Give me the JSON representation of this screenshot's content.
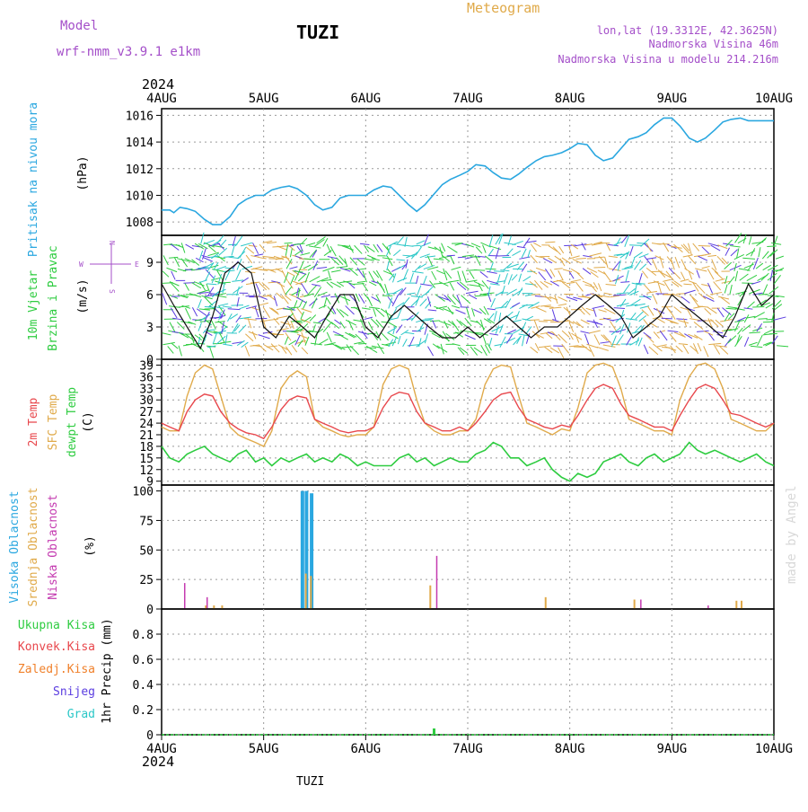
{
  "header": {
    "model_label": "Model",
    "model_name": "wrf-nmm_v3.9.1  e1km",
    "station_title": "TUZI",
    "product_title": "Meteogram",
    "lonlat": "lon,lat (19.3312E, 42.3625N)",
    "elevation": "Nadmorska Visina 46m",
    "model_elevation": "Nadmorska Visina u modelu 214.216m",
    "footer_station": "TUZI",
    "credit": "made by Angel"
  },
  "colors": {
    "pressure": "#2aa7e0",
    "t2m": "#e8474c",
    "tsfc": "#e0aa4a",
    "dewpoint": "#2ecc40",
    "high_cloud": "#2aa7e0",
    "mid_cloud": "#e0aa4a",
    "low_cloud": "#c43ab0",
    "total_precip": "#2ecc40",
    "conv_precip": "#e8474c",
    "frozen_precip": "#f0802a",
    "snow": "#5a3ce0",
    "hail": "#2ac7c7",
    "wind_speed": "#111111",
    "grid": "#9a9a9a"
  },
  "time_axis": {
    "year": "2024",
    "labels": [
      "4AUG",
      "5AUG",
      "6AUG",
      "7AUG",
      "8AUG",
      "9AUG",
      "10AUG"
    ]
  },
  "chart_data": [
    {
      "id": "pressure",
      "type": "line",
      "ylabel": "Pritisak na nivou mora",
      "units": "(hPa)",
      "ylim": [
        1007,
        1016.5
      ],
      "yticks": [
        1008,
        1010,
        1012,
        1014,
        1016
      ],
      "grid": true,
      "x_days": [
        0,
        0.08,
        0.12,
        0.18,
        0.25,
        0.33,
        0.42,
        0.5,
        0.58,
        0.67,
        0.75,
        0.83,
        0.92,
        1.0,
        1.08,
        1.17,
        1.25,
        1.33,
        1.42,
        1.5,
        1.58,
        1.67,
        1.75,
        1.83,
        1.92,
        2.0,
        2.08,
        2.17,
        2.25,
        2.33,
        2.42,
        2.5,
        2.58,
        2.67,
        2.75,
        2.83,
        2.92,
        3.0,
        3.08,
        3.17,
        3.25,
        3.33,
        3.42,
        3.5,
        3.58,
        3.67,
        3.75,
        3.83,
        3.92,
        4.0,
        4.08,
        4.17,
        4.25,
        4.33,
        4.42,
        4.5,
        4.58,
        4.67,
        4.75,
        4.83,
        4.92,
        5.0,
        5.08,
        5.17,
        5.25,
        5.33,
        5.42,
        5.5,
        5.58,
        5.67,
        5.75,
        5.83,
        5.92,
        6.0
      ],
      "series": [
        {
          "values": [
            1008.9,
            1008.9,
            1008.7,
            1009.1,
            1009.0,
            1008.8,
            1008.2,
            1007.8,
            1007.8,
            1008.4,
            1009.3,
            1009.7,
            1010.0,
            1010.0,
            1010.4,
            1010.6,
            1010.7,
            1010.5,
            1010.0,
            1009.3,
            1008.9,
            1009.1,
            1009.8,
            1010.0,
            1010.0,
            1010.0,
            1010.4,
            1010.7,
            1010.6,
            1010.0,
            1009.3,
            1008.8,
            1009.3,
            1010.1,
            1010.8,
            1011.2,
            1011.5,
            1011.8,
            1012.3,
            1012.2,
            1011.7,
            1011.3,
            1011.2,
            1011.6,
            1012.1,
            1012.6,
            1012.9,
            1013.0,
            1013.2,
            1013.5,
            1013.9,
            1013.8,
            1013.0,
            1012.6,
            1012.8,
            1013.5,
            1014.2,
            1014.4,
            1014.7,
            1015.3,
            1015.8,
            1015.8,
            1015.2,
            1014.3,
            1014.0,
            1014.3,
            1014.9,
            1015.5,
            1015.7,
            1015.8,
            1015.6,
            1015.6,
            1015.6,
            1015.6
          ]
        }
      ]
    },
    {
      "id": "wind",
      "type": "line",
      "ylabel_lines": [
        "10m Vjetar",
        "Brzina i Pravac"
      ],
      "units": "(m/s)",
      "ylim": [
        0,
        11.5
      ],
      "yticks": [
        0,
        3,
        6,
        9
      ],
      "compass": {
        "w": "W",
        "e": "E",
        "n": "N",
        "s": "S"
      },
      "grid": true,
      "x_days": [
        0,
        0.12,
        0.25,
        0.38,
        0.5,
        0.62,
        0.75,
        0.88,
        1.0,
        1.12,
        1.25,
        1.38,
        1.5,
        1.62,
        1.75,
        1.88,
        2.0,
        2.12,
        2.25,
        2.38,
        2.5,
        2.62,
        2.75,
        2.88,
        3.0,
        3.12,
        3.25,
        3.38,
        3.5,
        3.62,
        3.75,
        3.88,
        4.0,
        4.12,
        4.25,
        4.38,
        4.5,
        4.62,
        4.75,
        4.88,
        5.0,
        5.12,
        5.25,
        5.38,
        5.5,
        5.62,
        5.75,
        5.88,
        6.0
      ],
      "series": [
        {
          "values": [
            7,
            5,
            3,
            1,
            4,
            8,
            9,
            8,
            3,
            2,
            4,
            3,
            2,
            4,
            6,
            6,
            3,
            2,
            4,
            5,
            4,
            3,
            2,
            2,
            3,
            2,
            3,
            4,
            3,
            2,
            3,
            3,
            4,
            5,
            6,
            5,
            4,
            2,
            3,
            4,
            6,
            5,
            4,
            3,
            2,
            4,
            7,
            5,
            6
          ]
        }
      ]
    },
    {
      "id": "temperature",
      "type": "line",
      "ylabel_lines": [
        "2m Temp",
        "SFC Temp",
        "dewpt Temp"
      ],
      "units": "(C)",
      "ylim": [
        8,
        40.5
      ],
      "yticks": [
        9,
        12,
        15,
        18,
        21,
        24,
        27,
        30,
        33,
        36,
        39
      ],
      "grid": true,
      "x_days": [
        0,
        0.08,
        0.17,
        0.25,
        0.33,
        0.42,
        0.5,
        0.58,
        0.67,
        0.75,
        0.83,
        0.92,
        1.0,
        1.08,
        1.17,
        1.25,
        1.33,
        1.42,
        1.5,
        1.58,
        1.67,
        1.75,
        1.83,
        1.92,
        2.0,
        2.08,
        2.17,
        2.25,
        2.33,
        2.42,
        2.5,
        2.58,
        2.67,
        2.75,
        2.83,
        2.92,
        3.0,
        3.08,
        3.17,
        3.25,
        3.33,
        3.42,
        3.5,
        3.58,
        3.67,
        3.75,
        3.83,
        3.92,
        4.0,
        4.08,
        4.17,
        4.25,
        4.33,
        4.42,
        4.5,
        4.58,
        4.67,
        4.75,
        4.83,
        4.92,
        5.0,
        5.08,
        5.17,
        5.25,
        5.33,
        5.42,
        5.5,
        5.58,
        5.67,
        5.75,
        5.83,
        5.92,
        6.0
      ],
      "series": [
        {
          "values": [
            24,
            23,
            22,
            27,
            30,
            31.5,
            31,
            27,
            24,
            22.5,
            21.5,
            21,
            20,
            23,
            27.5,
            30,
            31,
            30.5,
            25,
            24,
            23,
            22,
            21.5,
            22,
            22,
            23,
            28,
            31,
            32,
            31.5,
            27,
            24,
            23,
            22,
            22,
            23,
            22,
            24,
            27,
            30,
            31.5,
            32,
            28,
            25,
            24,
            23,
            22.5,
            23.5,
            23,
            26,
            30,
            33,
            34,
            33,
            29,
            26,
            25,
            24,
            23,
            23,
            22,
            26,
            30,
            33,
            34,
            33,
            30,
            26.5,
            26,
            25,
            24,
            23,
            24
          ]
        },
        {
          "values": [
            23,
            22,
            22,
            31,
            37,
            39,
            38,
            31,
            23,
            21,
            20,
            19,
            18,
            22,
            33,
            36,
            37.5,
            36,
            25,
            23,
            22,
            21,
            20.5,
            21,
            21,
            23,
            34,
            38,
            39,
            38,
            30,
            24,
            22,
            21,
            21,
            22,
            22,
            25,
            34,
            38,
            39,
            38.5,
            31,
            24,
            23,
            22,
            21,
            22.5,
            22,
            28,
            37,
            39,
            39.5,
            38.5,
            33,
            25,
            24,
            23,
            22,
            22,
            21,
            30,
            36,
            39,
            39.5,
            38,
            33,
            25,
            24,
            23,
            22,
            22,
            24
          ]
        },
        {
          "values": [
            18,
            15,
            14,
            16,
            17,
            18,
            16,
            15,
            14,
            16,
            17,
            14,
            15,
            13,
            15,
            14,
            15,
            16,
            14,
            15,
            14,
            16,
            15,
            13,
            14,
            13,
            13,
            13,
            15,
            16,
            14,
            15,
            13,
            14,
            15,
            14,
            14,
            16,
            17,
            19,
            18,
            15,
            15,
            13,
            14,
            15,
            12,
            10,
            9,
            11,
            10,
            11,
            14,
            15,
            16,
            14,
            13,
            15,
            16,
            14,
            15,
            16,
            19,
            17,
            16,
            17,
            16,
            15,
            14,
            15,
            16,
            14,
            13
          ]
        }
      ]
    },
    {
      "id": "cloud",
      "type": "bar",
      "ylabel_lines": [
        "Visoka Oblacnost",
        "Srednja Oblacnost",
        "Niska Oblacnost"
      ],
      "units": "(%)",
      "ylim": [
        0,
        105
      ],
      "yticks": [
        0,
        25,
        50,
        75,
        100
      ],
      "grid": true,
      "series": [
        {
          "name": "Visoka Oblacnost",
          "x_days": [
            1.38,
            1.42,
            1.47
          ],
          "values": [
            100,
            100,
            98
          ]
        },
        {
          "name": "Srednja Oblacnost",
          "x_days": [
            0.42,
            0.5,
            0.58,
            1.4,
            1.45,
            2.62,
            3.75,
            4.62,
            5.62,
            5.67
          ],
          "values": [
            3,
            3,
            3,
            30,
            28,
            20,
            10,
            8,
            7,
            7
          ]
        },
        {
          "name": "Niska Oblacnost",
          "x_days": [
            0.2,
            0.42,
            2.67,
            4.67,
            5.33
          ],
          "values": [
            22,
            10,
            45,
            8,
            3
          ]
        }
      ]
    },
    {
      "id": "precip",
      "type": "bar",
      "ylabel": "1hr Precip (mm)",
      "legend": [
        "Ukupna Kisa",
        "Konvek.Kisa",
        "Zaledj.Kisa",
        "Snijeg",
        "Grad"
      ],
      "ylim": [
        0,
        1.0
      ],
      "yticks": [
        0,
        0.2,
        0.4,
        0.6,
        0.8
      ],
      "grid": true,
      "series": [
        {
          "name": "Ukupna Kisa",
          "x_days": [
            2.67
          ],
          "values": [
            0.05
          ]
        }
      ]
    }
  ]
}
